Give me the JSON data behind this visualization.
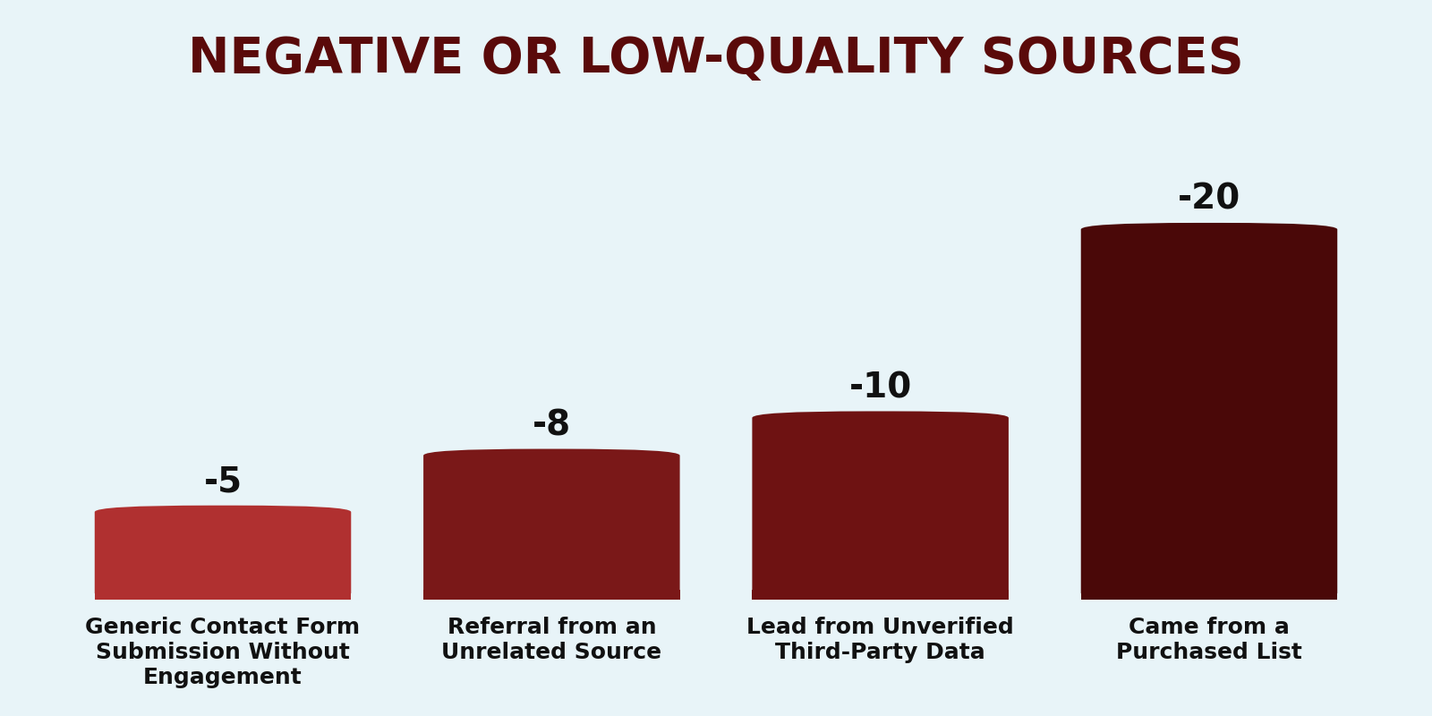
{
  "title": "NEGATIVE OR LOW-QUALITY SOURCES",
  "title_color": "#5a0a0a",
  "title_fontsize": 40,
  "background_color": "#e8f4f8",
  "categories": [
    "Generic Contact Form\nSubmission Without\nEngagement",
    "Referral from an\nUnrelated Source",
    "Lead from Unverified\nThird-Party Data",
    "Came from a\nPurchased List"
  ],
  "values": [
    5,
    8,
    10,
    20
  ],
  "labels": [
    "-5",
    "-8",
    "-10",
    "-20"
  ],
  "bar_colors": [
    "#b03030",
    "#7a1818",
    "#6e1212",
    "#4a0808"
  ],
  "label_color": "#111111",
  "label_fontsize": 28,
  "tick_label_fontsize": 18,
  "tick_label_color": "#111111",
  "ylim": [
    0,
    26
  ],
  "bar_width": 0.78
}
